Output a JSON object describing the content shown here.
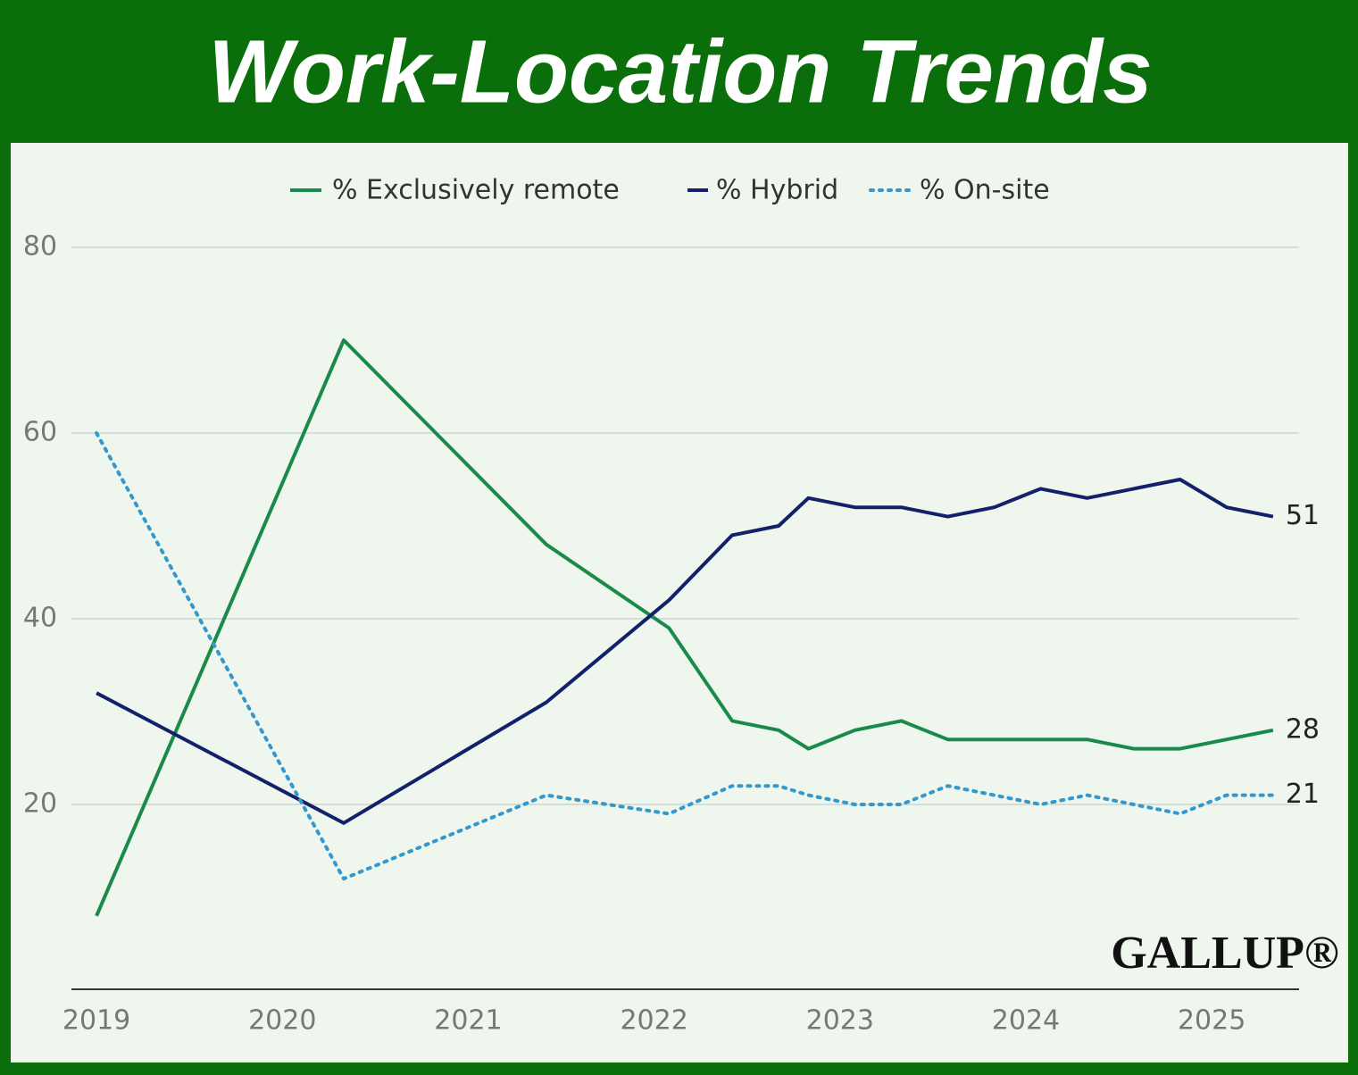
{
  "chart_data": {
    "type": "line",
    "title": "Work-Location Trends",
    "logo": "GALLUP®",
    "x": [
      2019,
      2020.33,
      2021.42,
      2022.08,
      2022.42,
      2022.67,
      2022.83,
      2023.08,
      2023.33,
      2023.58,
      2023.83,
      2024.08,
      2024.33,
      2024.58,
      2024.83,
      2025.08,
      2025.33
    ],
    "series": [
      {
        "name": "% Exclusively remote",
        "color": "#1a8a4a",
        "style": "solid",
        "values": [
          8,
          70,
          48,
          39,
          29,
          28,
          26,
          28,
          29,
          27,
          27,
          27,
          27,
          26,
          26,
          27,
          28
        ]
      },
      {
        "name": "% Hybrid",
        "color": "#13216a",
        "style": "solid",
        "values": [
          32,
          18,
          31,
          42,
          49,
          50,
          53,
          52,
          52,
          51,
          52,
          54,
          53,
          54,
          55,
          52,
          51
        ]
      },
      {
        "name": "% On-site",
        "color": "#3399cc",
        "style": "dotted",
        "values": [
          60,
          12,
          21,
          19,
          22,
          22,
          21,
          20,
          20,
          22,
          21,
          20,
          21,
          20,
          19,
          21,
          21
        ]
      }
    ],
    "xlim": [
      2018.865,
      2025.47
    ],
    "xticks": [
      2019,
      2020,
      2021,
      2022,
      2023,
      2024,
      2025
    ],
    "ylim": [
      0,
      80
    ],
    "yticks": [
      20,
      40,
      60,
      80
    ],
    "grid": true,
    "end_labels": true,
    "legend": "top"
  }
}
